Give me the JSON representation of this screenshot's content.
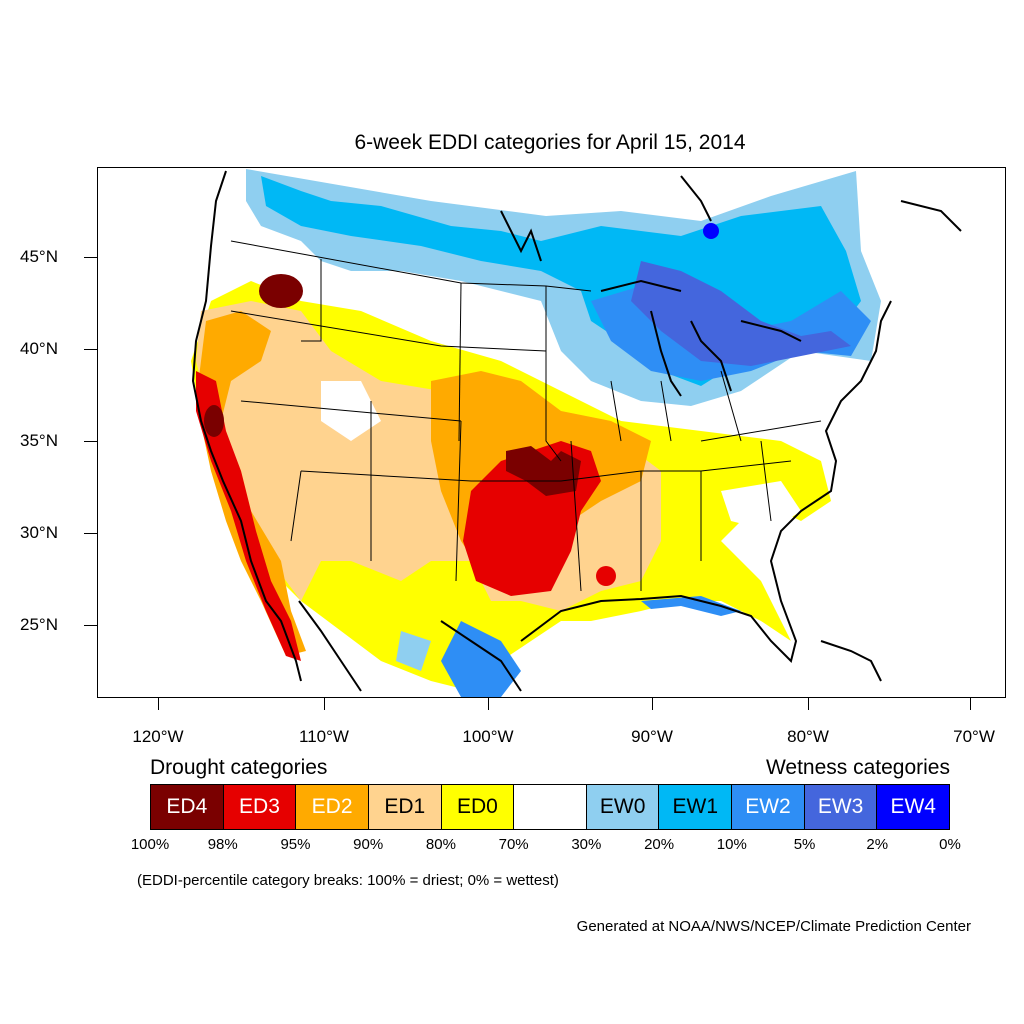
{
  "title": "6-week EDDI categories for April 15, 2014",
  "map": {
    "lat_labels": [
      "45°N",
      "40°N",
      "35°N",
      "30°N",
      "25°N"
    ],
    "lon_labels": [
      "120°W",
      "110°W",
      "100°W",
      "90°W",
      "80°W",
      "70°W"
    ],
    "colors": {
      "ED4": "#7a0000",
      "ED3": "#e60000",
      "ED2": "#ffaa00",
      "ED1": "#ffd38f",
      "ED0": "#ffff00",
      "neutral": "#ffffff",
      "EW0": "#8fcff0",
      "EW1": "#00b8f5",
      "EW2": "#2e8ef5",
      "EW3": "#4466dd",
      "EW4": "#0000ff"
    }
  },
  "legend": {
    "drought_label": "Drought categories",
    "wetness_label": "Wetness categories",
    "boxes": [
      {
        "label": "ED4",
        "color": "#7a0000",
        "text_color": "#ffffff"
      },
      {
        "label": "ED3",
        "color": "#e60000",
        "text_color": "#ffffff"
      },
      {
        "label": "ED2",
        "color": "#ffaa00",
        "text_color": "#ffffff"
      },
      {
        "label": "ED1",
        "color": "#ffd38f",
        "text_color": "#000000"
      },
      {
        "label": "ED0",
        "color": "#ffff00",
        "text_color": "#000000"
      },
      {
        "label": "",
        "color": "#ffffff",
        "text_color": "#000000"
      },
      {
        "label": "EW0",
        "color": "#8fcff0",
        "text_color": "#000000"
      },
      {
        "label": "EW1",
        "color": "#00b8f5",
        "text_color": "#000000"
      },
      {
        "label": "EW2",
        "color": "#2e8ef5",
        "text_color": "#ffffff"
      },
      {
        "label": "EW3",
        "color": "#4466dd",
        "text_color": "#ffffff"
      },
      {
        "label": "EW4",
        "color": "#0000ff",
        "text_color": "#ffffff"
      }
    ],
    "percentiles": [
      "100%",
      "98%",
      "95%",
      "90%",
      "80%",
      "70%",
      "30%",
      "20%",
      "10%",
      "5%",
      "2%",
      "0%"
    ]
  },
  "note": "(EDDI-percentile category breaks: 100% = driest; 0% = wettest)",
  "credit": "Generated at NOAA/NWS/NCEP/Climate Prediction Center"
}
